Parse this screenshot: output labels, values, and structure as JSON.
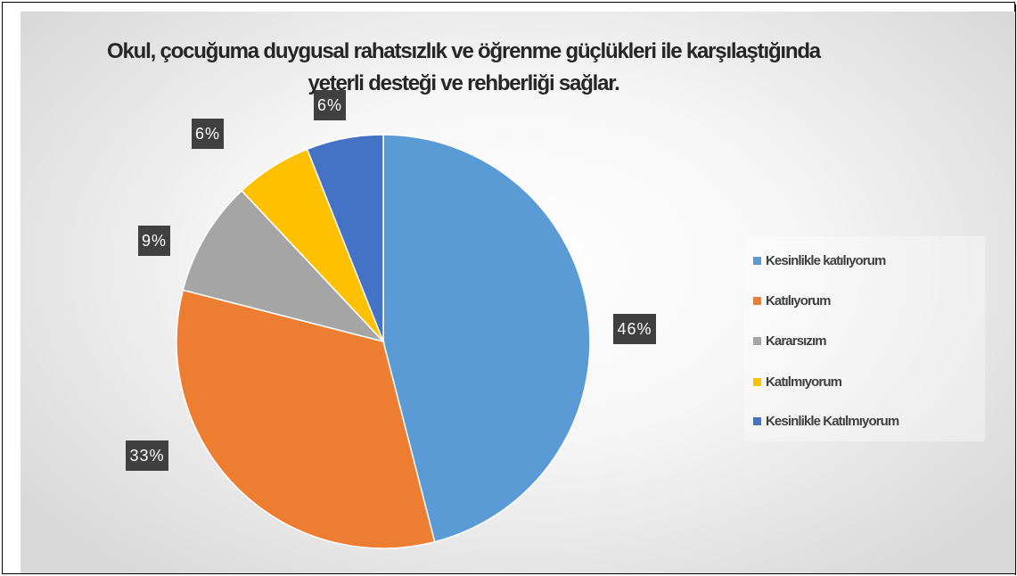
{
  "chart_data": {
    "type": "pie",
    "title": "Okul, çocuğuma duygusal rahatsızlık ve öğrenme güçlükleri ile karşılaştığında yeterli desteği ve rehberliği sağlar.",
    "categories": [
      "Kesinlikle katılıyorum",
      "Katılıyorum",
      "Kararsızım",
      "Katılmıyorum",
      "Kesinlikle Katılmıyorum"
    ],
    "values": [
      46,
      33,
      9,
      6,
      6
    ],
    "data_labels": [
      "46%",
      "33%",
      "9%",
      "6%",
      "6%"
    ],
    "colors": [
      "#5b9bd5",
      "#ed7d31",
      "#a5a5a5",
      "#ffc000",
      "#4472c4"
    ],
    "legend_position": "right",
    "start_angle_deg": 0,
    "direction": "clockwise"
  }
}
